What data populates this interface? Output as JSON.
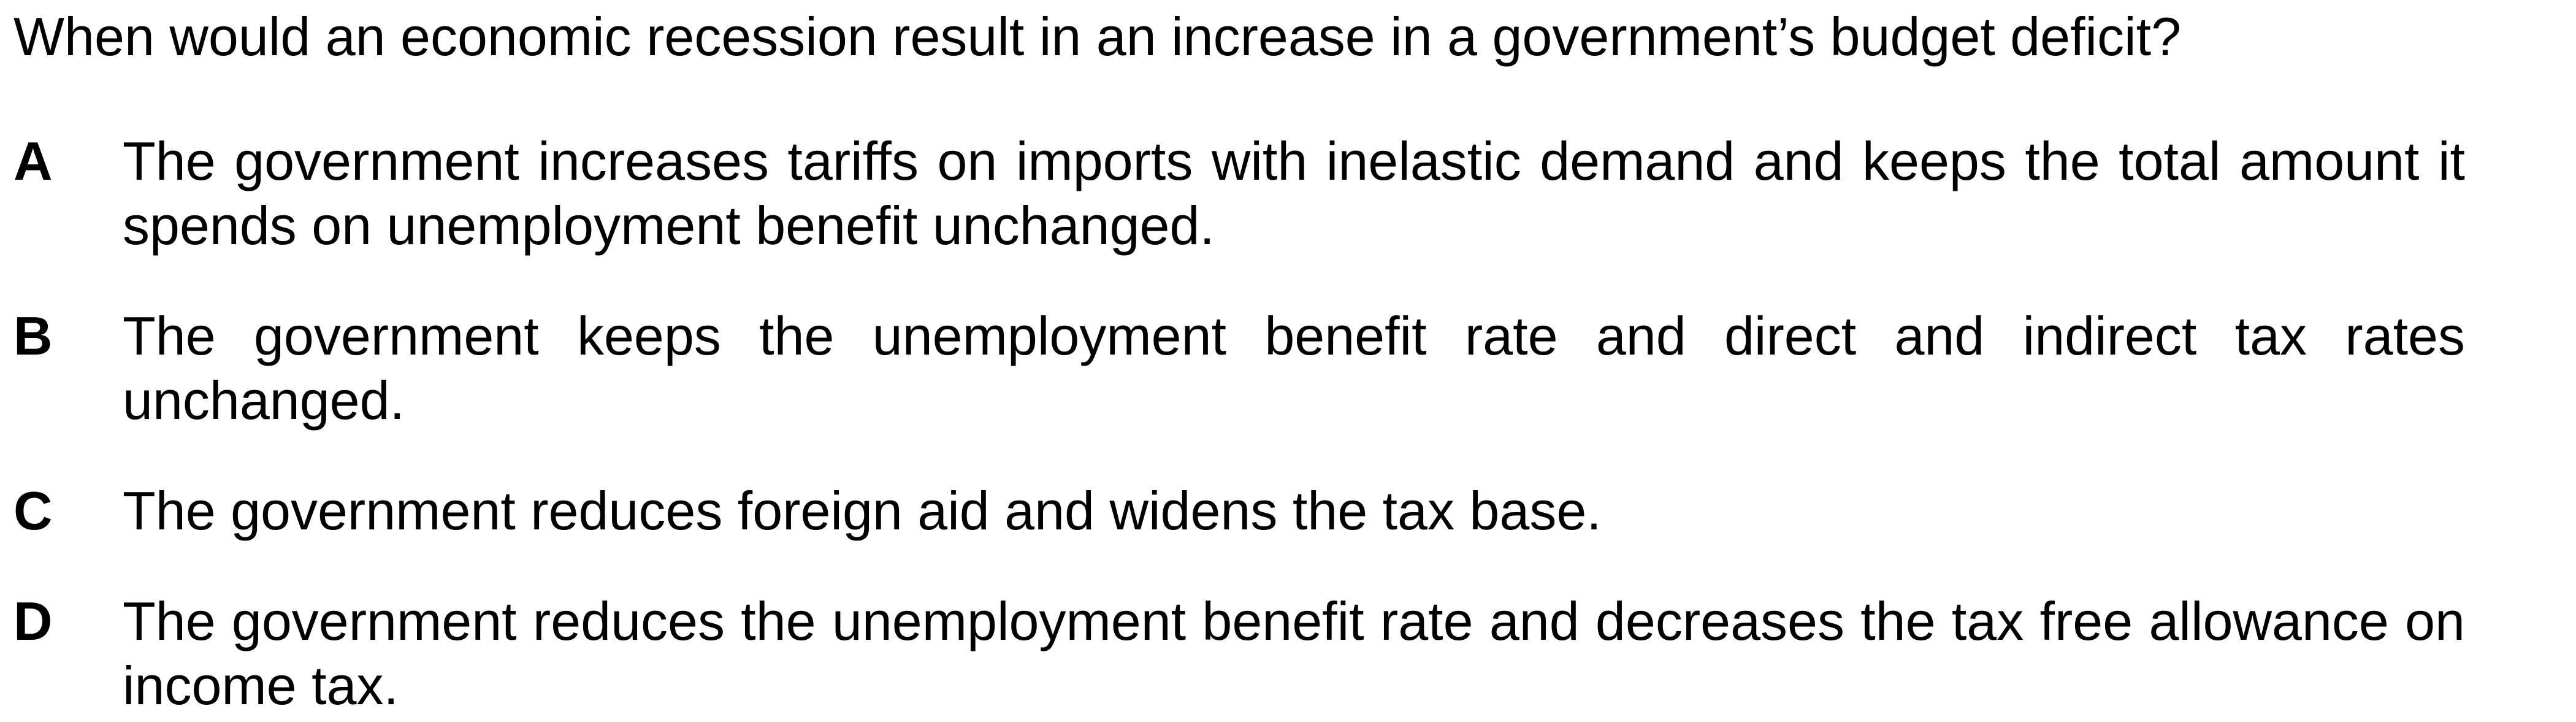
{
  "question": {
    "text": "When would an economic recession result in an increase in a government’s budget deficit?"
  },
  "options": [
    {
      "letter": "A",
      "text": "The government increases tariffs on imports with inelastic demand and keeps the total amount it spends on unemployment benefit unchanged."
    },
    {
      "letter": "B",
      "text": "The government keeps the unemployment benefit rate and direct and indirect tax rates unchanged."
    },
    {
      "letter": "C",
      "text": "The government reduces foreign aid and widens the tax base."
    },
    {
      "letter": "D",
      "text": "The government reduces the unemployment benefit rate and decreases the tax free allowance on income tax."
    }
  ]
}
